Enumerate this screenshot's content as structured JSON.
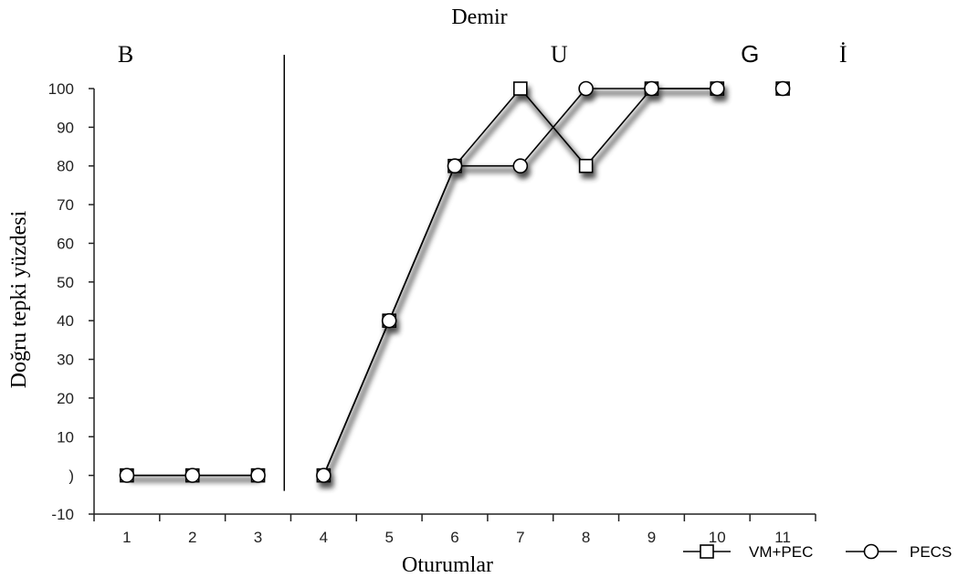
{
  "chart_data": {
    "type": "line",
    "title": "Demir",
    "xlabel": "Oturumlar",
    "ylabel": "Doğru tepki yüzdesi",
    "x": [
      1,
      2,
      3,
      4,
      5,
      6,
      7,
      8,
      9,
      10,
      11
    ],
    "xticks": [
      "1",
      "2",
      "3",
      "4",
      "5",
      "6",
      "7",
      "8",
      "9",
      "10",
      "11"
    ],
    "yticks": [
      "-10",
      ")",
      "10",
      "20",
      "30",
      "40",
      "50",
      "60",
      "70",
      "80",
      "90",
      "100"
    ],
    "ylim": [
      -10,
      100
    ],
    "xlim": [
      0.5,
      11.5
    ],
    "grid": false,
    "legend_position": "bottom-right",
    "phases": [
      {
        "label": "B",
        "sessions": [
          1,
          3
        ]
      },
      {
        "label": "U",
        "sessions": [
          4,
          8
        ]
      },
      {
        "label": "G",
        "sessions": [
          9,
          10
        ]
      },
      {
        "label": "İ",
        "sessions": [
          11,
          11
        ]
      }
    ],
    "phase_line_after_session": 3,
    "series": [
      {
        "name": "VM+PEC",
        "marker": "square",
        "segments": [
          [
            1,
            2,
            3
          ],
          [
            4,
            5,
            6,
            7,
            8,
            9,
            10
          ],
          [
            11
          ]
        ],
        "values": [
          0,
          0,
          0,
          0,
          40,
          80,
          100,
          80,
          100,
          100,
          100
        ]
      },
      {
        "name": "PECS",
        "marker": "circle",
        "segments": [
          [
            1,
            2,
            3
          ],
          [
            4,
            5,
            6,
            7,
            8,
            9,
            10
          ],
          [
            11
          ]
        ],
        "values": [
          0,
          0,
          0,
          0,
          40,
          80,
          80,
          100,
          100,
          100,
          100
        ]
      }
    ]
  }
}
